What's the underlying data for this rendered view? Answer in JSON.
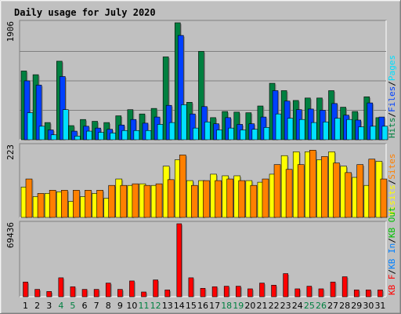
{
  "chart_data": {
    "type": "bar",
    "title": "Daily usage for July 2020",
    "categories": [
      "1",
      "2",
      "3",
      "4",
      "5",
      "6",
      "7",
      "8",
      "9",
      "10",
      "11",
      "12",
      "13",
      "14",
      "15",
      "16",
      "17",
      "18",
      "19",
      "20",
      "21",
      "22",
      "23",
      "24",
      "25",
      "26",
      "27",
      "28",
      "29",
      "30",
      "31"
    ],
    "weekend_days": [
      "4",
      "5",
      "11",
      "12",
      "18",
      "19",
      "25",
      "26"
    ],
    "colors": {
      "background": "#c0c0c0",
      "frame": "#808080",
      "title": "#0000c0",
      "weekday_label": "#000000",
      "weekend_label": "#008040",
      "hits": "#008040",
      "files": "#0040ff",
      "pages": "#00e0ff",
      "visits": "#ffff00",
      "sites": "#ff8000",
      "kb_in": "#0080ff",
      "kb_out": "#00c000",
      "kb_f": "#ff0000",
      "legend_sep": "#000000"
    },
    "panels": [
      {
        "id": "hits-files-pages",
        "max_label": "1906",
        "ymax": 1906,
        "legend": [
          {
            "text": "Hits",
            "color": "hits"
          },
          {
            "text": "Files",
            "color": "files"
          },
          {
            "text": "Pages",
            "color": "pages"
          }
        ],
        "series": [
          {
            "name": "Hits",
            "color": "hits",
            "values": [
              1120,
              1060,
              280,
              1280,
              230,
              330,
              300,
              280,
              390,
              490,
              420,
              510,
              1350,
              1906,
              610,
              1440,
              360,
              460,
              450,
              440,
              550,
              920,
              800,
              640,
              680,
              680,
              800,
              530,
              460,
              700,
              360
            ]
          },
          {
            "name": "Files",
            "color": "files",
            "values": [
              960,
              890,
              160,
              1030,
              140,
              220,
              190,
              170,
              240,
              330,
              270,
              370,
              560,
              1700,
              420,
              540,
              260,
              360,
              250,
              260,
              370,
              800,
              630,
              490,
              500,
              480,
              590,
              400,
              320,
              600,
              370
            ]
          },
          {
            "name": "Pages",
            "color": "pages",
            "values": [
              440,
              220,
              80,
              490,
              60,
              140,
              120,
              110,
              150,
              150,
              150,
              250,
              280,
              570,
              190,
              290,
              160,
              190,
              160,
              170,
              200,
              420,
              350,
              330,
              280,
              290,
              350,
              330,
              210,
              220,
              220
            ]
          }
        ]
      },
      {
        "id": "visits-sites",
        "max_label": "223",
        "ymax": 223,
        "legend": [
          {
            "text": "Visits",
            "color": "visits"
          },
          {
            "text": "Sites",
            "color": "sites"
          }
        ],
        "series": [
          {
            "name": "Visits",
            "color": "visits",
            "values": [
              95,
              65,
              75,
              80,
              50,
              65,
              75,
              60,
              120,
              100,
              105,
              100,
              160,
              180,
              115,
              115,
              135,
              130,
              130,
              115,
              110,
              135,
              193,
              205,
              205,
              180,
              205,
              160,
              125,
              100,
              175
            ]
          },
          {
            "name": "Sites",
            "color": "sites",
            "values": [
              120,
              75,
              85,
              85,
              85,
              85,
              85,
              100,
              100,
              105,
              100,
              105,
              118,
              195,
              100,
              115,
              115,
              120,
              115,
              100,
              120,
              165,
              150,
              165,
              210,
              190,
              170,
              140,
              165,
              182,
              120
            ]
          }
        ]
      },
      {
        "id": "kbytes",
        "max_label": "69436",
        "ymax": 69436,
        "legend": [
          {
            "text": "KB F",
            "color": "kb_f"
          },
          {
            "text": "KB In",
            "color": "kb_in"
          },
          {
            "text": "KB Out",
            "color": "kb_out"
          }
        ],
        "series": [
          {
            "name": "KB F",
            "color": "kb_f",
            "values": [
              14000,
              7000,
              5000,
              18000,
              9500,
              7000,
              7000,
              13000,
              7000,
              15000,
              4500,
              16000,
              6500,
              69436,
              18000,
              8000,
              9500,
              10000,
              10000,
              7500,
              13000,
              11000,
              22000,
              7500,
              10000,
              7500,
              14000,
              19000,
              6500,
              6500,
              6500
            ]
          }
        ]
      }
    ]
  }
}
